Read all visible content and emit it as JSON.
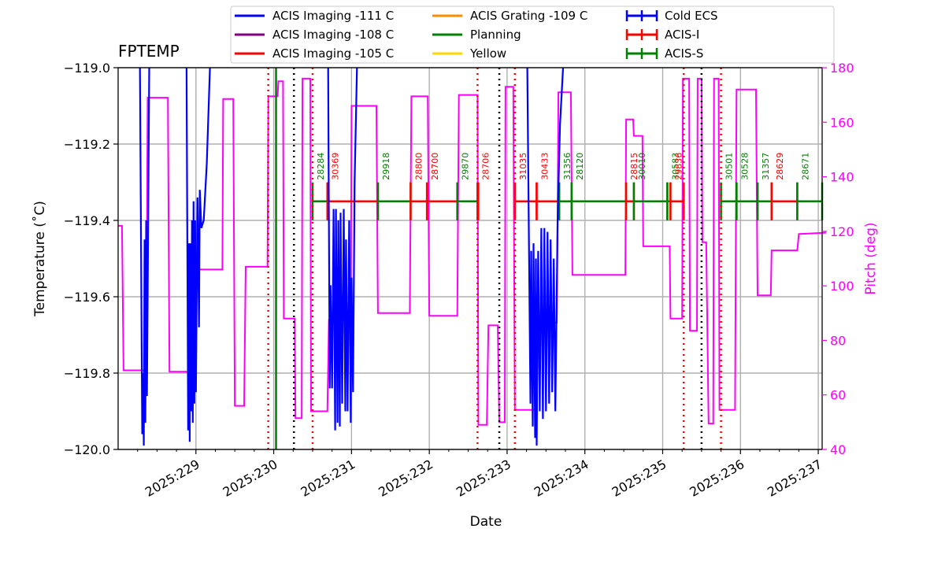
{
  "chart_data": {
    "type": "line",
    "title": "FPTEMP",
    "xlabel": "Date",
    "ylabel": "Temperature ($^\\circ$C)",
    "ylabel_display": "Temperature (˚C)",
    "y2label": "Pitch (deg)",
    "xlim": [
      228.0,
      237.05
    ],
    "ylim": [
      -120.0,
      -119.0
    ],
    "y2lim": [
      40,
      180
    ],
    "xtick_labels": [
      {
        "day": 229,
        "label": "2025:229"
      },
      {
        "day": 230,
        "label": "2025:230"
      },
      {
        "day": 231,
        "label": "2025:231"
      },
      {
        "day": 232,
        "label": "2025:232"
      },
      {
        "day": 233,
        "label": "2025:233"
      },
      {
        "day": 234,
        "label": "2025:234"
      },
      {
        "day": 235,
        "label": "2025:235"
      },
      {
        "day": 236,
        "label": "2025:236"
      },
      {
        "day": 237,
        "label": "2025:237"
      }
    ],
    "ytick_labels": [
      "−120.0",
      "−119.8",
      "−119.6",
      "−119.4",
      "−119.2",
      "−119.0"
    ],
    "y2tick_labels": [
      "40",
      "60",
      "80",
      "100",
      "120",
      "140",
      "160",
      "180"
    ],
    "grid": true,
    "legend_position": "top, above plot",
    "legend": [
      {
        "label": "ACIS Imaging -111 C",
        "color": "#0000ff",
        "style": "line"
      },
      {
        "label": "ACIS Imaging -108 C",
        "color": "#800080",
        "style": "line"
      },
      {
        "label": "ACIS Imaging -105 C",
        "color": "#ff0000",
        "style": "line"
      },
      {
        "label": "ACIS Grating -109 C",
        "color": "#ff8c00",
        "style": "line"
      },
      {
        "label": "Planning",
        "color": "#008000",
        "style": "line"
      },
      {
        "label": "Yellow",
        "color": "#ffd700",
        "style": "line"
      },
      {
        "label": "Cold ECS",
        "color": "#0000ff",
        "style": "errorbar"
      },
      {
        "label": "ACIS-I",
        "color": "#ff0000",
        "style": "errorbar"
      },
      {
        "label": "ACIS-S",
        "color": "#008000",
        "style": "errorbar"
      }
    ],
    "colors": {
      "fptemp": "#0000ff",
      "pitch": "#ff00ff",
      "acis_i": "#ff0000",
      "acis_s": "#008000",
      "grid": "#b0b0b0"
    },
    "pitch_series": {
      "name": "Pitch",
      "points": [
        [
          228.0,
          122
        ],
        [
          228.05,
          122
        ],
        [
          228.07,
          69
        ],
        [
          228.36,
          69
        ],
        [
          228.38,
          169
        ],
        [
          228.64,
          169
        ],
        [
          228.66,
          68.5
        ],
        [
          228.94,
          68.5
        ],
        [
          228.96,
          106
        ],
        [
          229.34,
          106
        ],
        [
          229.35,
          168.5
        ],
        [
          229.48,
          168.5
        ],
        [
          229.5,
          56
        ],
        [
          229.62,
          56
        ],
        [
          229.64,
          107
        ],
        [
          229.92,
          107
        ],
        [
          229.93,
          169.5
        ],
        [
          230.05,
          169.5
        ],
        [
          230.06,
          175
        ],
        [
          230.12,
          175
        ],
        [
          230.13,
          88
        ],
        [
          230.27,
          88
        ],
        [
          230.28,
          51.5
        ],
        [
          230.36,
          51.5
        ],
        [
          230.37,
          176
        ],
        [
          230.47,
          176
        ],
        [
          230.48,
          54
        ],
        [
          230.69,
          54
        ],
        [
          230.71,
          87.5
        ],
        [
          230.99,
          87.5
        ],
        [
          231.0,
          166
        ],
        [
          231.32,
          166
        ],
        [
          231.34,
          90
        ],
        [
          231.75,
          90
        ],
        [
          231.77,
          169.5
        ],
        [
          231.98,
          169.5
        ],
        [
          232.0,
          89
        ],
        [
          232.36,
          89
        ],
        [
          232.38,
          170
        ],
        [
          232.62,
          170
        ],
        [
          232.63,
          49
        ],
        [
          232.74,
          49
        ],
        [
          232.76,
          85.5
        ],
        [
          232.88,
          85.5
        ],
        [
          232.9,
          50
        ],
        [
          232.97,
          50
        ],
        [
          232.98,
          173
        ],
        [
          233.08,
          173
        ],
        [
          233.1,
          54.5
        ],
        [
          233.38,
          54.5
        ],
        [
          233.4,
          86.5
        ],
        [
          233.64,
          86.5
        ],
        [
          233.66,
          171
        ],
        [
          233.82,
          171
        ],
        [
          233.84,
          104
        ],
        [
          234.52,
          104
        ],
        [
          234.53,
          161
        ],
        [
          234.62,
          161
        ],
        [
          234.63,
          155
        ],
        [
          234.74,
          155
        ],
        [
          234.75,
          114.5
        ],
        [
          235.09,
          114.5
        ],
        [
          235.1,
          88
        ],
        [
          235.25,
          88
        ],
        [
          235.26,
          176
        ],
        [
          235.34,
          176
        ],
        [
          235.35,
          83.5
        ],
        [
          235.44,
          83.5
        ],
        [
          235.45,
          176
        ],
        [
          235.5,
          176
        ],
        [
          235.51,
          116
        ],
        [
          235.56,
          116
        ],
        [
          235.59,
          49.5
        ],
        [
          235.65,
          49.5
        ],
        [
          235.66,
          176
        ],
        [
          235.72,
          176
        ],
        [
          235.73,
          54.5
        ],
        [
          235.93,
          54.5
        ],
        [
          235.95,
          172
        ],
        [
          236.2,
          172
        ],
        [
          236.22,
          96.5
        ],
        [
          236.39,
          96.5
        ],
        [
          236.4,
          113
        ],
        [
          236.73,
          113
        ],
        [
          236.75,
          119
        ],
        [
          237.1,
          119.5
        ]
      ]
    },
    "fptemp_segments": [
      {
        "name": "FPTEMP",
        "points": [
          [
            228.28,
            -119.0
          ],
          [
            228.31,
            -119.96
          ],
          [
            228.32,
            -119.8
          ],
          [
            228.33,
            -119.99
          ],
          [
            228.34,
            -119.45
          ],
          [
            228.35,
            -119.93
          ],
          [
            228.36,
            -119.4
          ],
          [
            228.37,
            -119.86
          ],
          [
            228.38,
            -119.6
          ],
          [
            228.4,
            -119.0
          ]
        ]
      },
      {
        "name": "FPTEMP",
        "points": [
          [
            228.88,
            -119.0
          ],
          [
            228.9,
            -119.95
          ],
          [
            228.91,
            -119.46
          ],
          [
            228.92,
            -119.98
          ],
          [
            228.93,
            -119.46
          ],
          [
            228.94,
            -119.9
          ],
          [
            228.95,
            -119.4
          ],
          [
            228.96,
            -119.93
          ],
          [
            228.97,
            -119.35
          ],
          [
            228.98,
            -119.88
          ],
          [
            228.99,
            -119.4
          ],
          [
            229.0,
            -119.85
          ],
          [
            229.02,
            -119.34
          ],
          [
            229.04,
            -119.68
          ],
          [
            229.05,
            -119.32
          ],
          [
            229.07,
            -119.42
          ],
          [
            229.1,
            -119.4
          ],
          [
            229.14,
            -119.25
          ],
          [
            229.18,
            -119.0
          ]
        ]
      },
      {
        "name": "FPTEMP",
        "points": [
          [
            230.7,
            -119.0
          ],
          [
            230.72,
            -119.84
          ],
          [
            230.73,
            -119.57
          ],
          [
            230.75,
            -119.84
          ],
          [
            230.77,
            -119.37
          ],
          [
            230.79,
            -119.95
          ],
          [
            230.8,
            -119.37
          ],
          [
            230.82,
            -119.93
          ],
          [
            230.83,
            -119.4
          ],
          [
            230.85,
            -119.94
          ],
          [
            230.86,
            -119.38
          ],
          [
            230.88,
            -119.88
          ],
          [
            230.9,
            -119.37
          ],
          [
            230.92,
            -119.9
          ],
          [
            230.93,
            -119.45
          ],
          [
            230.95,
            -119.9
          ],
          [
            230.97,
            -119.4
          ],
          [
            230.99,
            -119.93
          ],
          [
            231.0,
            -119.55
          ],
          [
            231.02,
            -119.85
          ],
          [
            231.04,
            -119.3
          ],
          [
            231.07,
            -119.0
          ]
        ]
      },
      {
        "name": "FPTEMP",
        "points": [
          [
            233.26,
            -119.0
          ],
          [
            233.3,
            -119.88
          ],
          [
            233.31,
            -119.48
          ],
          [
            233.33,
            -119.94
          ],
          [
            233.34,
            -119.46
          ],
          [
            233.36,
            -119.97
          ],
          [
            233.37,
            -119.5
          ],
          [
            233.38,
            -119.99
          ],
          [
            233.4,
            -119.48
          ],
          [
            233.42,
            -119.9
          ],
          [
            233.44,
            -119.42
          ],
          [
            233.46,
            -119.92
          ],
          [
            233.48,
            -119.42
          ],
          [
            233.5,
            -119.9
          ],
          [
            233.52,
            -119.43
          ],
          [
            233.54,
            -119.88
          ],
          [
            233.56,
            -119.45
          ],
          [
            233.58,
            -119.85
          ],
          [
            233.6,
            -119.5
          ],
          [
            233.62,
            -119.9
          ],
          [
            233.65,
            -119.4
          ],
          [
            233.68,
            -119.15
          ],
          [
            233.72,
            -119.0
          ]
        ]
      }
    ],
    "vlines": [
      {
        "x": 229.93,
        "color": "#ff0000",
        "style": "dotted"
      },
      {
        "x": 230.26,
        "color": "#000000",
        "style": "dotted"
      },
      {
        "x": 230.5,
        "color": "#ff0000",
        "style": "dotted"
      },
      {
        "x": 232.62,
        "color": "#ff0000",
        "style": "dotted"
      },
      {
        "x": 232.9,
        "color": "#000000",
        "style": "dotted"
      },
      {
        "x": 233.1,
        "color": "#ff0000",
        "style": "dotted"
      },
      {
        "x": 235.27,
        "color": "#ff0000",
        "style": "dotted"
      },
      {
        "x": 235.5,
        "color": "#000000",
        "style": "dotted"
      },
      {
        "x": 235.75,
        "color": "#ff0000",
        "style": "dotted"
      },
      {
        "x": 230.03,
        "color": "#008000",
        "style": "solid"
      }
    ],
    "observations": [
      {
        "obsid": "28284",
        "start": 230.5,
        "end": 230.69,
        "instrument": "ACIS-S"
      },
      {
        "obsid": "30369",
        "start": 230.69,
        "end": 231.34,
        "instrument": "ACIS-I"
      },
      {
        "obsid": "29918",
        "start": 231.34,
        "end": 231.76,
        "instrument": "ACIS-S"
      },
      {
        "obsid": "28800",
        "start": 231.76,
        "end": 231.97,
        "instrument": "ACIS-I"
      },
      {
        "obsid": "28700",
        "start": 231.97,
        "end": 232.36,
        "instrument": "ACIS-I"
      },
      {
        "obsid": "29870",
        "start": 232.36,
        "end": 232.62,
        "instrument": "ACIS-S"
      },
      {
        "obsid": "28706",
        "start": 232.62,
        "end": 232.63,
        "instrument": "ACIS-I"
      },
      {
        "obsid": "31035",
        "start": 233.1,
        "end": 233.38,
        "instrument": "ACIS-I"
      },
      {
        "obsid": "30433",
        "start": 233.38,
        "end": 233.67,
        "instrument": "ACIS-I"
      },
      {
        "obsid": "31356",
        "start": 233.67,
        "end": 233.83,
        "instrument": "ACIS-S"
      },
      {
        "obsid": "28120",
        "start": 233.83,
        "end": 234.53,
        "instrument": "ACIS-S"
      },
      {
        "obsid": "28815",
        "start": 234.53,
        "end": 234.63,
        "instrument": "ACIS-I"
      },
      {
        "obsid": "30010",
        "start": 234.63,
        "end": 235.06,
        "instrument": "ACIS-S"
      },
      {
        "obsid": "30583",
        "start": 235.06,
        "end": 235.1,
        "instrument": "ACIS-S"
      },
      {
        "obsid": "29836",
        "start": 235.1,
        "end": 235.27,
        "instrument": "ACIS-I"
      },
      {
        "obsid": "30501",
        "start": 235.75,
        "end": 235.95,
        "instrument": "ACIS-S"
      },
      {
        "obsid": "30528",
        "start": 235.95,
        "end": 236.22,
        "instrument": "ACIS-S"
      },
      {
        "obsid": "31357",
        "start": 236.22,
        "end": 236.4,
        "instrument": "ACIS-S"
      },
      {
        "obsid": "28629",
        "start": 236.4,
        "end": 236.73,
        "instrument": "ACIS-I"
      },
      {
        "obsid": "28671",
        "start": 236.73,
        "end": 237.05,
        "instrument": "ACIS-S"
      }
    ],
    "obs_level": -119.35
  }
}
